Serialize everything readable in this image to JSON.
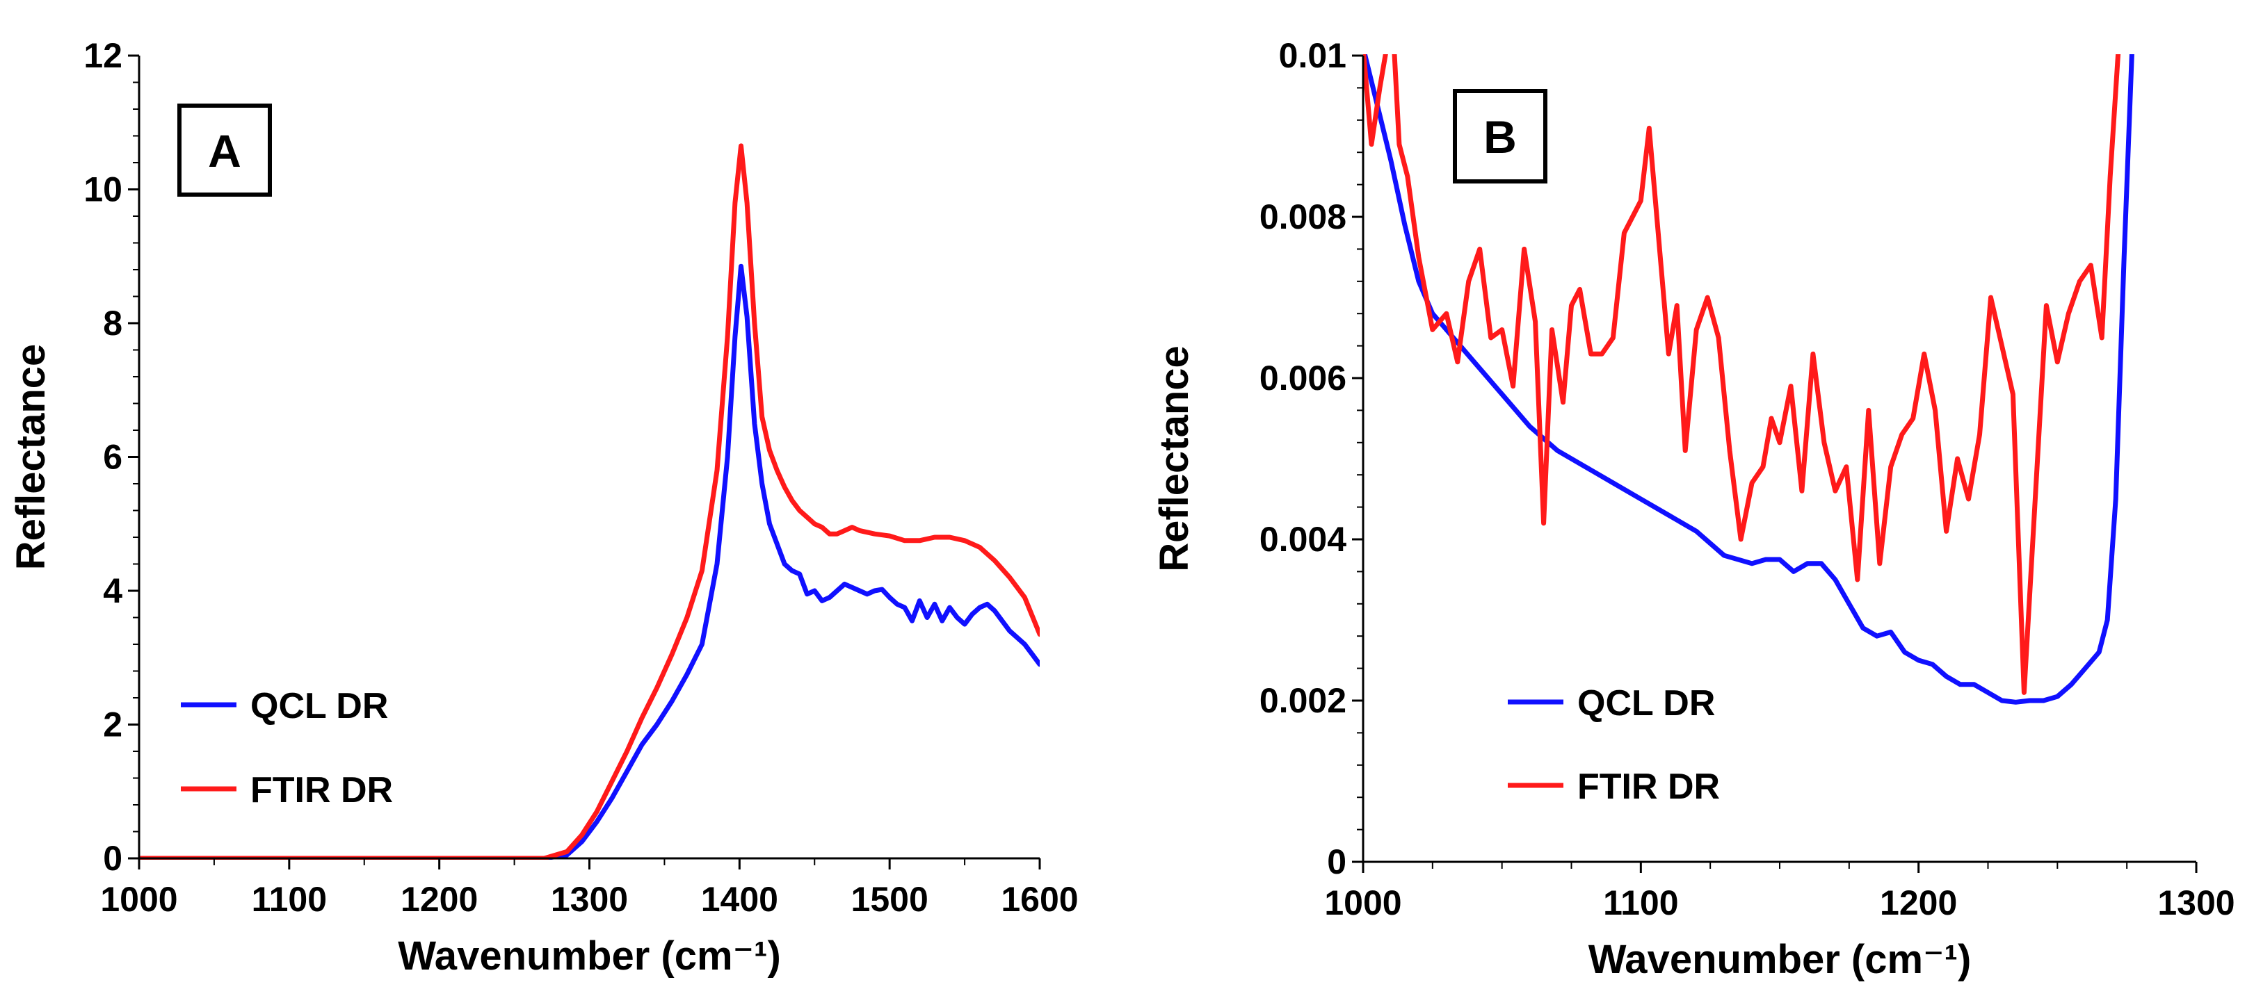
{
  "chart_data": [
    {
      "panel_label": "A",
      "type": "line",
      "xlabel": "Wavenumber (cm⁻¹)",
      "ylabel": "Reflectance",
      "xlim": [
        1000,
        1600
      ],
      "ylim": [
        0,
        12
      ],
      "xticks": [
        "1000",
        "1100",
        "1200",
        "1300",
        "1400",
        "1500",
        "1600"
      ],
      "yticks": [
        "0",
        "2",
        "4",
        "6",
        "8",
        "10",
        "12"
      ],
      "grid": false,
      "legend_position": "bottom-left",
      "series": [
        {
          "name": "QCL DR",
          "color": "#1010ff",
          "x": [
            1000,
            1100,
            1200,
            1270,
            1285,
            1295,
            1305,
            1315,
            1325,
            1335,
            1345,
            1355,
            1365,
            1375,
            1385,
            1392,
            1397,
            1401,
            1405,
            1410,
            1415,
            1420,
            1425,
            1430,
            1435,
            1440,
            1445,
            1450,
            1455,
            1460,
            1465,
            1470,
            1475,
            1480,
            1485,
            1490,
            1495,
            1500,
            1505,
            1510,
            1515,
            1520,
            1525,
            1530,
            1535,
            1540,
            1545,
            1550,
            1555,
            1560,
            1565,
            1570,
            1575,
            1580,
            1585,
            1590,
            1595,
            1600
          ],
          "y": [
            0,
            0,
            0,
            0,
            0.05,
            0.25,
            0.55,
            0.9,
            1.3,
            1.7,
            2.0,
            2.35,
            2.75,
            3.2,
            4.4,
            6.0,
            7.8,
            8.85,
            8.1,
            6.5,
            5.6,
            5.0,
            4.7,
            4.4,
            4.3,
            4.25,
            3.95,
            4.0,
            3.85,
            3.9,
            4.0,
            4.1,
            4.05,
            4.0,
            3.95,
            4.0,
            4.02,
            3.9,
            3.8,
            3.75,
            3.55,
            3.85,
            3.6,
            3.8,
            3.55,
            3.75,
            3.6,
            3.5,
            3.65,
            3.75,
            3.8,
            3.7,
            3.55,
            3.4,
            3.3,
            3.2,
            3.05,
            2.9
          ]
        },
        {
          "name": "FTIR DR",
          "color": "#ff1a1a",
          "x": [
            1000,
            1100,
            1200,
            1270,
            1285,
            1295,
            1305,
            1315,
            1325,
            1335,
            1345,
            1355,
            1365,
            1375,
            1385,
            1392,
            1397,
            1401,
            1405,
            1410,
            1415,
            1420,
            1425,
            1430,
            1435,
            1440,
            1445,
            1450,
            1455,
            1460,
            1465,
            1470,
            1475,
            1480,
            1490,
            1500,
            1510,
            1520,
            1530,
            1540,
            1550,
            1560,
            1570,
            1580,
            1590,
            1600
          ],
          "y": [
            0,
            0,
            0,
            0,
            0.1,
            0.35,
            0.7,
            1.15,
            1.6,
            2.1,
            2.55,
            3.05,
            3.6,
            4.3,
            5.8,
            7.8,
            9.8,
            10.65,
            9.8,
            8.0,
            6.6,
            6.1,
            5.8,
            5.55,
            5.35,
            5.2,
            5.1,
            5.0,
            4.95,
            4.85,
            4.85,
            4.9,
            4.95,
            4.9,
            4.85,
            4.82,
            4.75,
            4.75,
            4.8,
            4.8,
            4.75,
            4.65,
            4.45,
            4.2,
            3.9,
            3.35
          ]
        }
      ]
    },
    {
      "panel_label": "B",
      "type": "line",
      "xlabel": "Wavenumber (cm⁻¹)",
      "ylabel": "Reflectance",
      "xlim": [
        1000,
        1300
      ],
      "ylim": [
        0,
        0.01
      ],
      "xticks": [
        "1000",
        "1100",
        "1200",
        "1300"
      ],
      "yticks": [
        "0",
        "0.002",
        "0.004",
        "0.006",
        "0.008",
        "0.01"
      ],
      "grid": false,
      "legend_position": "bottom-left",
      "series": [
        {
          "name": "QCL DR",
          "color": "#1010ff",
          "x": [
            1000,
            1005,
            1010,
            1015,
            1020,
            1025,
            1030,
            1040,
            1050,
            1060,
            1070,
            1080,
            1090,
            1100,
            1110,
            1120,
            1130,
            1140,
            1145,
            1150,
            1155,
            1160,
            1165,
            1170,
            1175,
            1180,
            1185,
            1190,
            1195,
            1200,
            1205,
            1210,
            1215,
            1220,
            1225,
            1230,
            1235,
            1240,
            1245,
            1250,
            1255,
            1260,
            1265,
            1268,
            1271,
            1274,
            1277
          ],
          "y": [
            0.0101,
            0.0094,
            0.0087,
            0.0079,
            0.0072,
            0.0068,
            0.0066,
            0.0062,
            0.0058,
            0.0054,
            0.0051,
            0.0049,
            0.0047,
            0.0045,
            0.0043,
            0.0041,
            0.0038,
            0.0037,
            0.00375,
            0.00375,
            0.0036,
            0.0037,
            0.0037,
            0.0035,
            0.0032,
            0.0029,
            0.0028,
            0.00285,
            0.0026,
            0.0025,
            0.00245,
            0.0023,
            0.0022,
            0.0022,
            0.0021,
            0.002,
            0.00198,
            0.002,
            0.002,
            0.00205,
            0.0022,
            0.0024,
            0.0026,
            0.003,
            0.0045,
            0.0075,
            0.0102
          ]
        },
        {
          "name": "FTIR DR",
          "color": "#ff1a1a",
          "x": [
            1000,
            1003,
            1006,
            1009,
            1011,
            1013,
            1016,
            1020,
            1025,
            1030,
            1034,
            1038,
            1042,
            1046,
            1050,
            1054,
            1058,
            1062,
            1065,
            1068,
            1072,
            1075,
            1078,
            1082,
            1086,
            1090,
            1094,
            1097,
            1100,
            1103,
            1106,
            1110,
            1113,
            1116,
            1120,
            1124,
            1128,
            1132,
            1136,
            1140,
            1144,
            1147,
            1150,
            1154,
            1158,
            1162,
            1166,
            1170,
            1174,
            1178,
            1182,
            1186,
            1190,
            1194,
            1198,
            1202,
            1206,
            1210,
            1214,
            1218,
            1222,
            1226,
            1230,
            1234,
            1238,
            1242,
            1246,
            1250,
            1254,
            1258,
            1262,
            1266,
            1269,
            1272
          ],
          "y": [
            0.0101,
            0.0089,
            0.0096,
            0.0102,
            0.0102,
            0.0089,
            0.0085,
            0.0075,
            0.0066,
            0.0068,
            0.0062,
            0.0072,
            0.0076,
            0.0065,
            0.0066,
            0.0059,
            0.0076,
            0.0067,
            0.0042,
            0.0066,
            0.0057,
            0.0069,
            0.0071,
            0.0063,
            0.0063,
            0.0065,
            0.0078,
            0.008,
            0.0082,
            0.0091,
            0.0079,
            0.0063,
            0.0069,
            0.0051,
            0.0066,
            0.007,
            0.0065,
            0.0051,
            0.004,
            0.0047,
            0.0049,
            0.0055,
            0.0052,
            0.0059,
            0.0046,
            0.0063,
            0.0052,
            0.0046,
            0.0049,
            0.0035,
            0.0056,
            0.0037,
            0.0049,
            0.0053,
            0.0055,
            0.0063,
            0.0056,
            0.0041,
            0.005,
            0.0045,
            0.0053,
            0.007,
            0.0064,
            0.0058,
            0.0021,
            0.0045,
            0.0069,
            0.0062,
            0.0068,
            0.0072,
            0.0074,
            0.0065,
            0.0085,
            0.0101
          ]
        }
      ]
    }
  ]
}
